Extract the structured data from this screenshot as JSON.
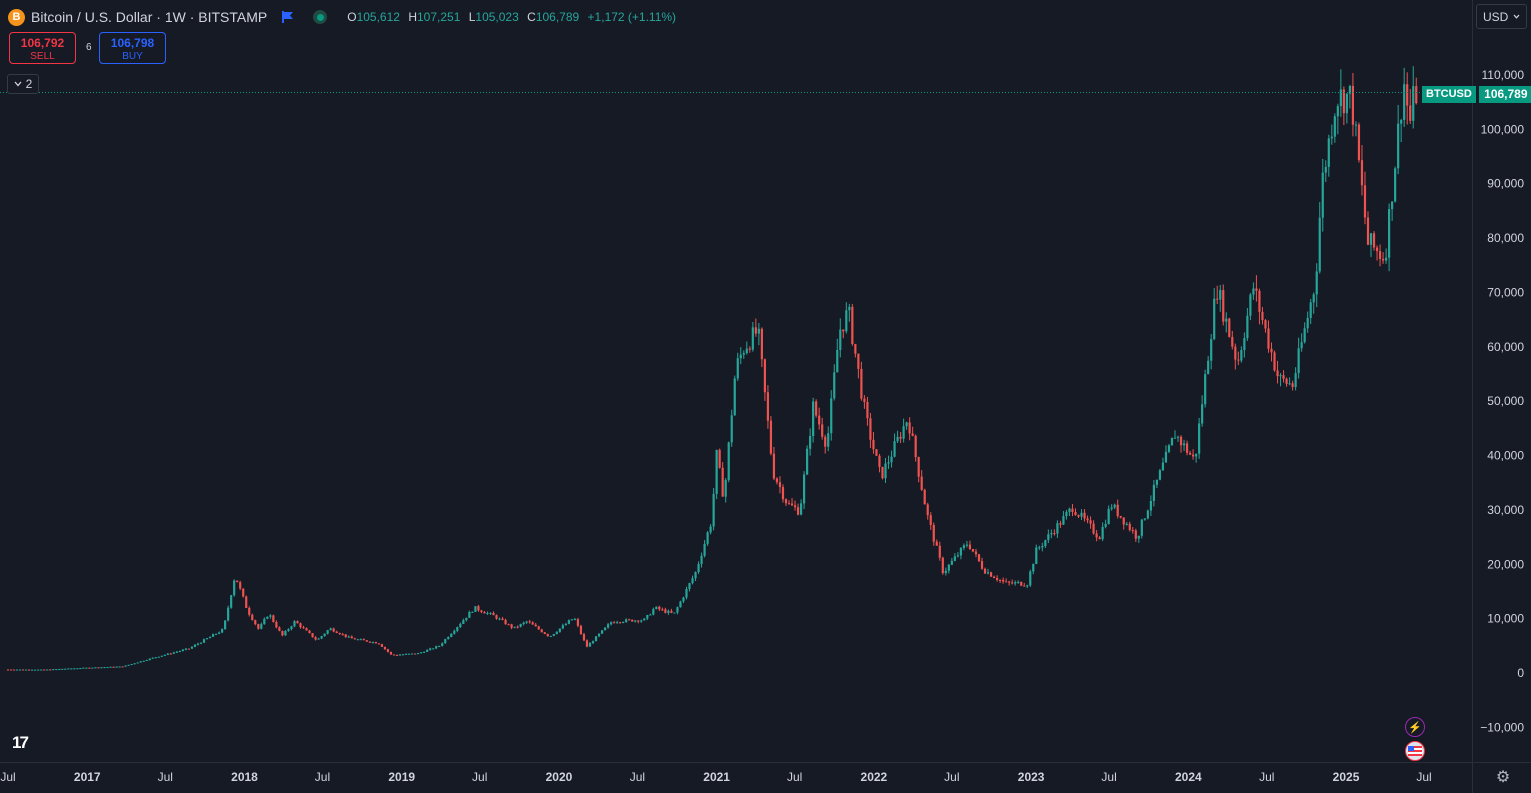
{
  "header": {
    "coin_icon_letter": "B",
    "symbol_title": "Bitcoin / U.S. Dollar · 1W · BITSTAMP",
    "ohlc": {
      "open_label": "O",
      "open": "105,612",
      "high_label": "H",
      "high": "107,251",
      "low_label": "L",
      "low": "105,023",
      "close_label": "C",
      "close": "106,789",
      "change": "+1,172 (+1.11%)"
    }
  },
  "trade": {
    "sell_price": "106,792",
    "sell_label": "SELL",
    "buy_price": "106,798",
    "buy_label": "BUY",
    "spread": "6"
  },
  "indicators_toggle": {
    "count": "2"
  },
  "logo_text": "17",
  "currency": {
    "selected": "USD"
  },
  "price_tag": {
    "symbol": "BTCUSD",
    "value": "106,789"
  },
  "colors": {
    "up": "#26a69a",
    "down": "#ef5350",
    "background": "#161a25",
    "grid": "#2a2e39",
    "last_price_line": "#089981"
  },
  "chart_data": {
    "type": "candlestick",
    "interval": "1W",
    "ylim": [
      -13500,
      115000
    ],
    "y_ticks": [
      -10000,
      0,
      10000,
      20000,
      30000,
      40000,
      50000,
      60000,
      70000,
      80000,
      90000,
      100000,
      110000
    ],
    "y_tick_labels": [
      "−10,000",
      "0",
      "10,000",
      "20,000",
      "30,000",
      "40,000",
      "50,000",
      "60,000",
      "70,000",
      "80,000",
      "90,000",
      "100,000",
      "110,000"
    ],
    "x_ticks": [
      {
        "label": "Jul",
        "date": "2016-07-01"
      },
      {
        "label": "2017",
        "date": "2017-01-01"
      },
      {
        "label": "Jul",
        "date": "2017-07-01"
      },
      {
        "label": "2018",
        "date": "2018-01-01"
      },
      {
        "label": "Jul",
        "date": "2018-07-01"
      },
      {
        "label": "2019",
        "date": "2019-01-01"
      },
      {
        "label": "Jul",
        "date": "2019-07-01"
      },
      {
        "label": "2020",
        "date": "2020-01-01"
      },
      {
        "label": "Jul",
        "date": "2020-07-01"
      },
      {
        "label": "2021",
        "date": "2021-01-01"
      },
      {
        "label": "Jul",
        "date": "2021-07-01"
      },
      {
        "label": "2022",
        "date": "2022-01-01"
      },
      {
        "label": "Jul",
        "date": "2022-07-01"
      },
      {
        "label": "2023",
        "date": "2023-01-01"
      },
      {
        "label": "Jul",
        "date": "2023-07-01"
      },
      {
        "label": "2024",
        "date": "2024-01-01"
      },
      {
        "label": "Jul",
        "date": "2024-07-01"
      },
      {
        "label": "2025",
        "date": "2025-01-01"
      },
      {
        "label": "Jul",
        "date": "2025-07-01"
      }
    ],
    "x_range": [
      "2016-07-01",
      "2025-10-01"
    ],
    "last_price": 106789,
    "price_path": [
      [
        "2016-07-01",
        650
      ],
      [
        "2016-10-01",
        620
      ],
      [
        "2017-01-01",
        950
      ],
      [
        "2017-04-01",
        1200
      ],
      [
        "2017-06-10",
        2800
      ],
      [
        "2017-09-01",
        4500
      ],
      [
        "2017-11-20",
        8000
      ],
      [
        "2017-12-17",
        18000
      ],
      [
        "2018-01-15",
        11500
      ],
      [
        "2018-02-10",
        8000
      ],
      [
        "2018-03-05",
        11000
      ],
      [
        "2018-04-05",
        6800
      ],
      [
        "2018-05-05",
        9500
      ],
      [
        "2018-06-25",
        6000
      ],
      [
        "2018-07-25",
        8200
      ],
      [
        "2018-09-10",
        6400
      ],
      [
        "2018-11-15",
        5500
      ],
      [
        "2018-12-15",
        3300
      ],
      [
        "2019-02-15",
        3600
      ],
      [
        "2019-04-05",
        5000
      ],
      [
        "2019-06-26",
        12000
      ],
      [
        "2019-08-10",
        10500
      ],
      [
        "2019-09-25",
        8200
      ],
      [
        "2019-10-26",
        9500
      ],
      [
        "2019-12-17",
        6700
      ],
      [
        "2020-02-12",
        10200
      ],
      [
        "2020-03-12",
        4800
      ],
      [
        "2020-05-10",
        9500
      ],
      [
        "2020-07-25",
        9800
      ],
      [
        "2020-08-17",
        12000
      ],
      [
        "2020-10-01",
        10800
      ],
      [
        "2020-11-20",
        18500
      ],
      [
        "2020-12-27",
        28000
      ],
      [
        "2021-01-08",
        40000
      ],
      [
        "2021-01-25",
        32000
      ],
      [
        "2021-02-21",
        56000
      ],
      [
        "2021-03-13",
        60000
      ],
      [
        "2021-04-14",
        63000
      ],
      [
        "2021-05-19",
        37000
      ],
      [
        "2021-06-22",
        31000
      ],
      [
        "2021-07-20",
        29800
      ],
      [
        "2021-08-20",
        49000
      ],
      [
        "2021-09-21",
        42000
      ],
      [
        "2021-10-20",
        63000
      ],
      [
        "2021-11-10",
        66500
      ],
      [
        "2021-12-20",
        47000
      ],
      [
        "2022-01-24",
        36000
      ],
      [
        "2022-03-28",
        47000
      ],
      [
        "2022-05-12",
        29000
      ],
      [
        "2022-06-18",
        18500
      ],
      [
        "2022-08-14",
        24000
      ],
      [
        "2022-09-20",
        19000
      ],
      [
        "2022-11-09",
        16500
      ],
      [
        "2022-12-30",
        16500
      ],
      [
        "2023-01-20",
        22500
      ],
      [
        "2023-03-20",
        28000
      ],
      [
        "2023-04-14",
        30500
      ],
      [
        "2023-06-15",
        25000
      ],
      [
        "2023-07-13",
        31000
      ],
      [
        "2023-09-11",
        25000
      ],
      [
        "2023-10-24",
        34500
      ],
      [
        "2023-12-08",
        44000
      ],
      [
        "2024-01-23",
        39000
      ],
      [
        "2024-02-28",
        62000
      ],
      [
        "2024-03-14",
        71000
      ],
      [
        "2024-05-01",
        57000
      ],
      [
        "2024-06-07",
        71000
      ],
      [
        "2024-08-05",
        54000
      ],
      [
        "2024-09-06",
        53000
      ],
      [
        "2024-10-29",
        72000
      ],
      [
        "2024-11-13",
        90000
      ],
      [
        "2024-12-16",
        106000
      ],
      [
        "2025-01-20",
        106000
      ],
      [
        "2025-02-28",
        79000
      ],
      [
        "2025-04-08",
        76500
      ],
      [
        "2025-05-22",
        109000
      ],
      [
        "2025-06-05",
        101000
      ],
      [
        "2025-06-16",
        106789
      ]
    ]
  }
}
